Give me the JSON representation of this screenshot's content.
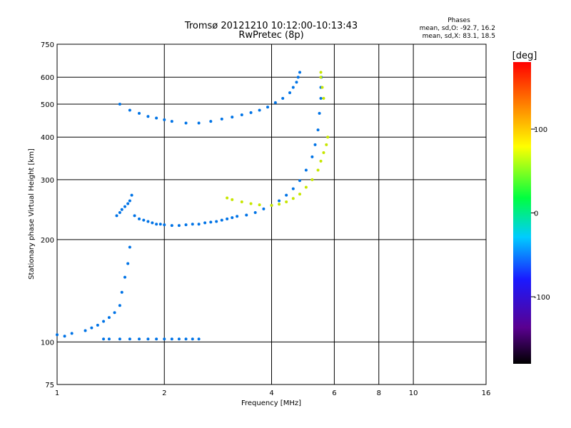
{
  "header": {
    "title_line1": "Tromsø 20121210 10:12:00-10:13:43",
    "title_line2": "RwPretec (8p)",
    "stats_title": "Phases",
    "stats_o": "mean, sd,O: -92.7, 16.2",
    "stats_x": "mean, sd,X: 83.1, 18.5"
  },
  "colorbar": {
    "unit_label": "[deg]",
    "range": [
      -180,
      180
    ],
    "ticks": [
      100,
      0,
      -100
    ],
    "tick_labels": [
      "100",
      "0",
      "-100"
    ],
    "colormap": "rainbow (black-purple-blue-cyan-green-yellow-red)"
  },
  "chart_data": {
    "type": "scatter",
    "title": "Tromsø 20121210 10:12:00-10:13:43",
    "subtitle": "RwPretec (8p)",
    "xlabel": "Frequency [MHz]",
    "ylabel": "Stationary phase Virtual Height [km]",
    "x_scale": "log",
    "y_scale": "log",
    "xlim": [
      1,
      16
    ],
    "ylim": [
      75,
      750
    ],
    "grid": true,
    "xticks": [
      1,
      2,
      4,
      6,
      8,
      10,
      16
    ],
    "xtick_labels": [
      "1",
      "2",
      "4",
      "6",
      "8",
      "10",
      "16"
    ],
    "yticks": [
      75,
      100,
      200,
      300,
      400,
      500,
      600,
      750
    ],
    "ytick_labels": [
      "75",
      "100",
      "200",
      "300",
      "400",
      "500",
      "600",
      "750"
    ],
    "color_scale": "phase [deg], -180 to 180",
    "series": [
      {
        "trace": "F-layer trace (O mode)",
        "phase_deg": -100,
        "points": [
          [
            1.47,
            235
          ],
          [
            1.5,
            240
          ],
          [
            1.52,
            245
          ],
          [
            1.55,
            250
          ],
          [
            1.58,
            255
          ],
          [
            1.6,
            260
          ],
          [
            1.62,
            270
          ],
          [
            1.65,
            235
          ],
          [
            1.7,
            230
          ],
          [
            1.75,
            228
          ],
          [
            1.8,
            226
          ],
          [
            1.85,
            224
          ],
          [
            1.9,
            222
          ],
          [
            1.95,
            222
          ],
          [
            2.0,
            221
          ],
          [
            2.1,
            220
          ],
          [
            2.2,
            220
          ],
          [
            2.3,
            221
          ],
          [
            2.4,
            222
          ],
          [
            2.5,
            222
          ],
          [
            2.6,
            224
          ],
          [
            2.7,
            225
          ],
          [
            2.8,
            226
          ],
          [
            2.9,
            228
          ],
          [
            3.0,
            230
          ],
          [
            3.1,
            232
          ],
          [
            3.2,
            234
          ],
          [
            3.4,
            236
          ],
          [
            3.6,
            240
          ],
          [
            3.8,
            246
          ],
          [
            4.0,
            252
          ],
          [
            4.2,
            260
          ],
          [
            4.4,
            270
          ],
          [
            4.6,
            282
          ],
          [
            4.8,
            298
          ],
          [
            5.0,
            320
          ],
          [
            5.2,
            350
          ],
          [
            5.3,
            380
          ],
          [
            5.4,
            420
          ],
          [
            5.45,
            470
          ],
          [
            5.5,
            520
          ],
          [
            5.5,
            560
          ],
          [
            5.52,
            600
          ]
        ]
      },
      {
        "trace": "F-layer upper branch (O mode)",
        "phase_deg": -100,
        "points": [
          [
            1.5,
            500
          ],
          [
            1.6,
            480
          ],
          [
            1.7,
            470
          ],
          [
            1.8,
            460
          ],
          [
            1.9,
            455
          ],
          [
            2.0,
            450
          ],
          [
            2.1,
            445
          ],
          [
            2.3,
            440
          ],
          [
            2.5,
            440
          ],
          [
            2.7,
            445
          ],
          [
            2.9,
            452
          ],
          [
            3.1,
            458
          ],
          [
            3.3,
            465
          ],
          [
            3.5,
            472
          ],
          [
            3.7,
            480
          ],
          [
            3.9,
            490
          ],
          [
            4.1,
            505
          ],
          [
            4.3,
            520
          ],
          [
            4.5,
            540
          ],
          [
            4.6,
            560
          ],
          [
            4.7,
            580
          ],
          [
            4.75,
            600
          ],
          [
            4.8,
            620
          ]
        ]
      },
      {
        "trace": "F-layer trace (X mode)",
        "phase_deg": 90,
        "points": [
          [
            3.0,
            265
          ],
          [
            3.1,
            262
          ],
          [
            3.3,
            258
          ],
          [
            3.5,
            255
          ],
          [
            3.7,
            253
          ],
          [
            4.0,
            252
          ],
          [
            4.2,
            254
          ],
          [
            4.4,
            258
          ],
          [
            4.6,
            264
          ],
          [
            4.8,
            272
          ],
          [
            5.0,
            285
          ],
          [
            5.2,
            300
          ],
          [
            5.4,
            320
          ],
          [
            5.5,
            340
          ],
          [
            5.6,
            360
          ],
          [
            5.7,
            380
          ],
          [
            5.75,
            400
          ],
          [
            5.6,
            520
          ],
          [
            5.55,
            560
          ],
          [
            5.5,
            600
          ],
          [
            5.5,
            620
          ]
        ]
      },
      {
        "trace": "E / sporadic-E trace",
        "phase_deg": -100,
        "points": [
          [
            1.0,
            105
          ],
          [
            1.05,
            104
          ],
          [
            1.1,
            106
          ],
          [
            1.2,
            108
          ],
          [
            1.25,
            110
          ],
          [
            1.3,
            112
          ],
          [
            1.35,
            115
          ],
          [
            1.4,
            118
          ],
          [
            1.45,
            122
          ],
          [
            1.5,
            128
          ],
          [
            1.52,
            140
          ],
          [
            1.55,
            155
          ],
          [
            1.58,
            170
          ],
          [
            1.6,
            190
          ],
          [
            1.35,
            102
          ],
          [
            1.4,
            102
          ],
          [
            1.5,
            102
          ],
          [
            1.6,
            102
          ],
          [
            1.7,
            102
          ],
          [
            1.8,
            102
          ],
          [
            1.9,
            102
          ],
          [
            2.0,
            102
          ],
          [
            2.1,
            102
          ],
          [
            2.2,
            102
          ],
          [
            2.3,
            102
          ],
          [
            2.4,
            102
          ],
          [
            2.5,
            102
          ]
        ]
      }
    ]
  }
}
